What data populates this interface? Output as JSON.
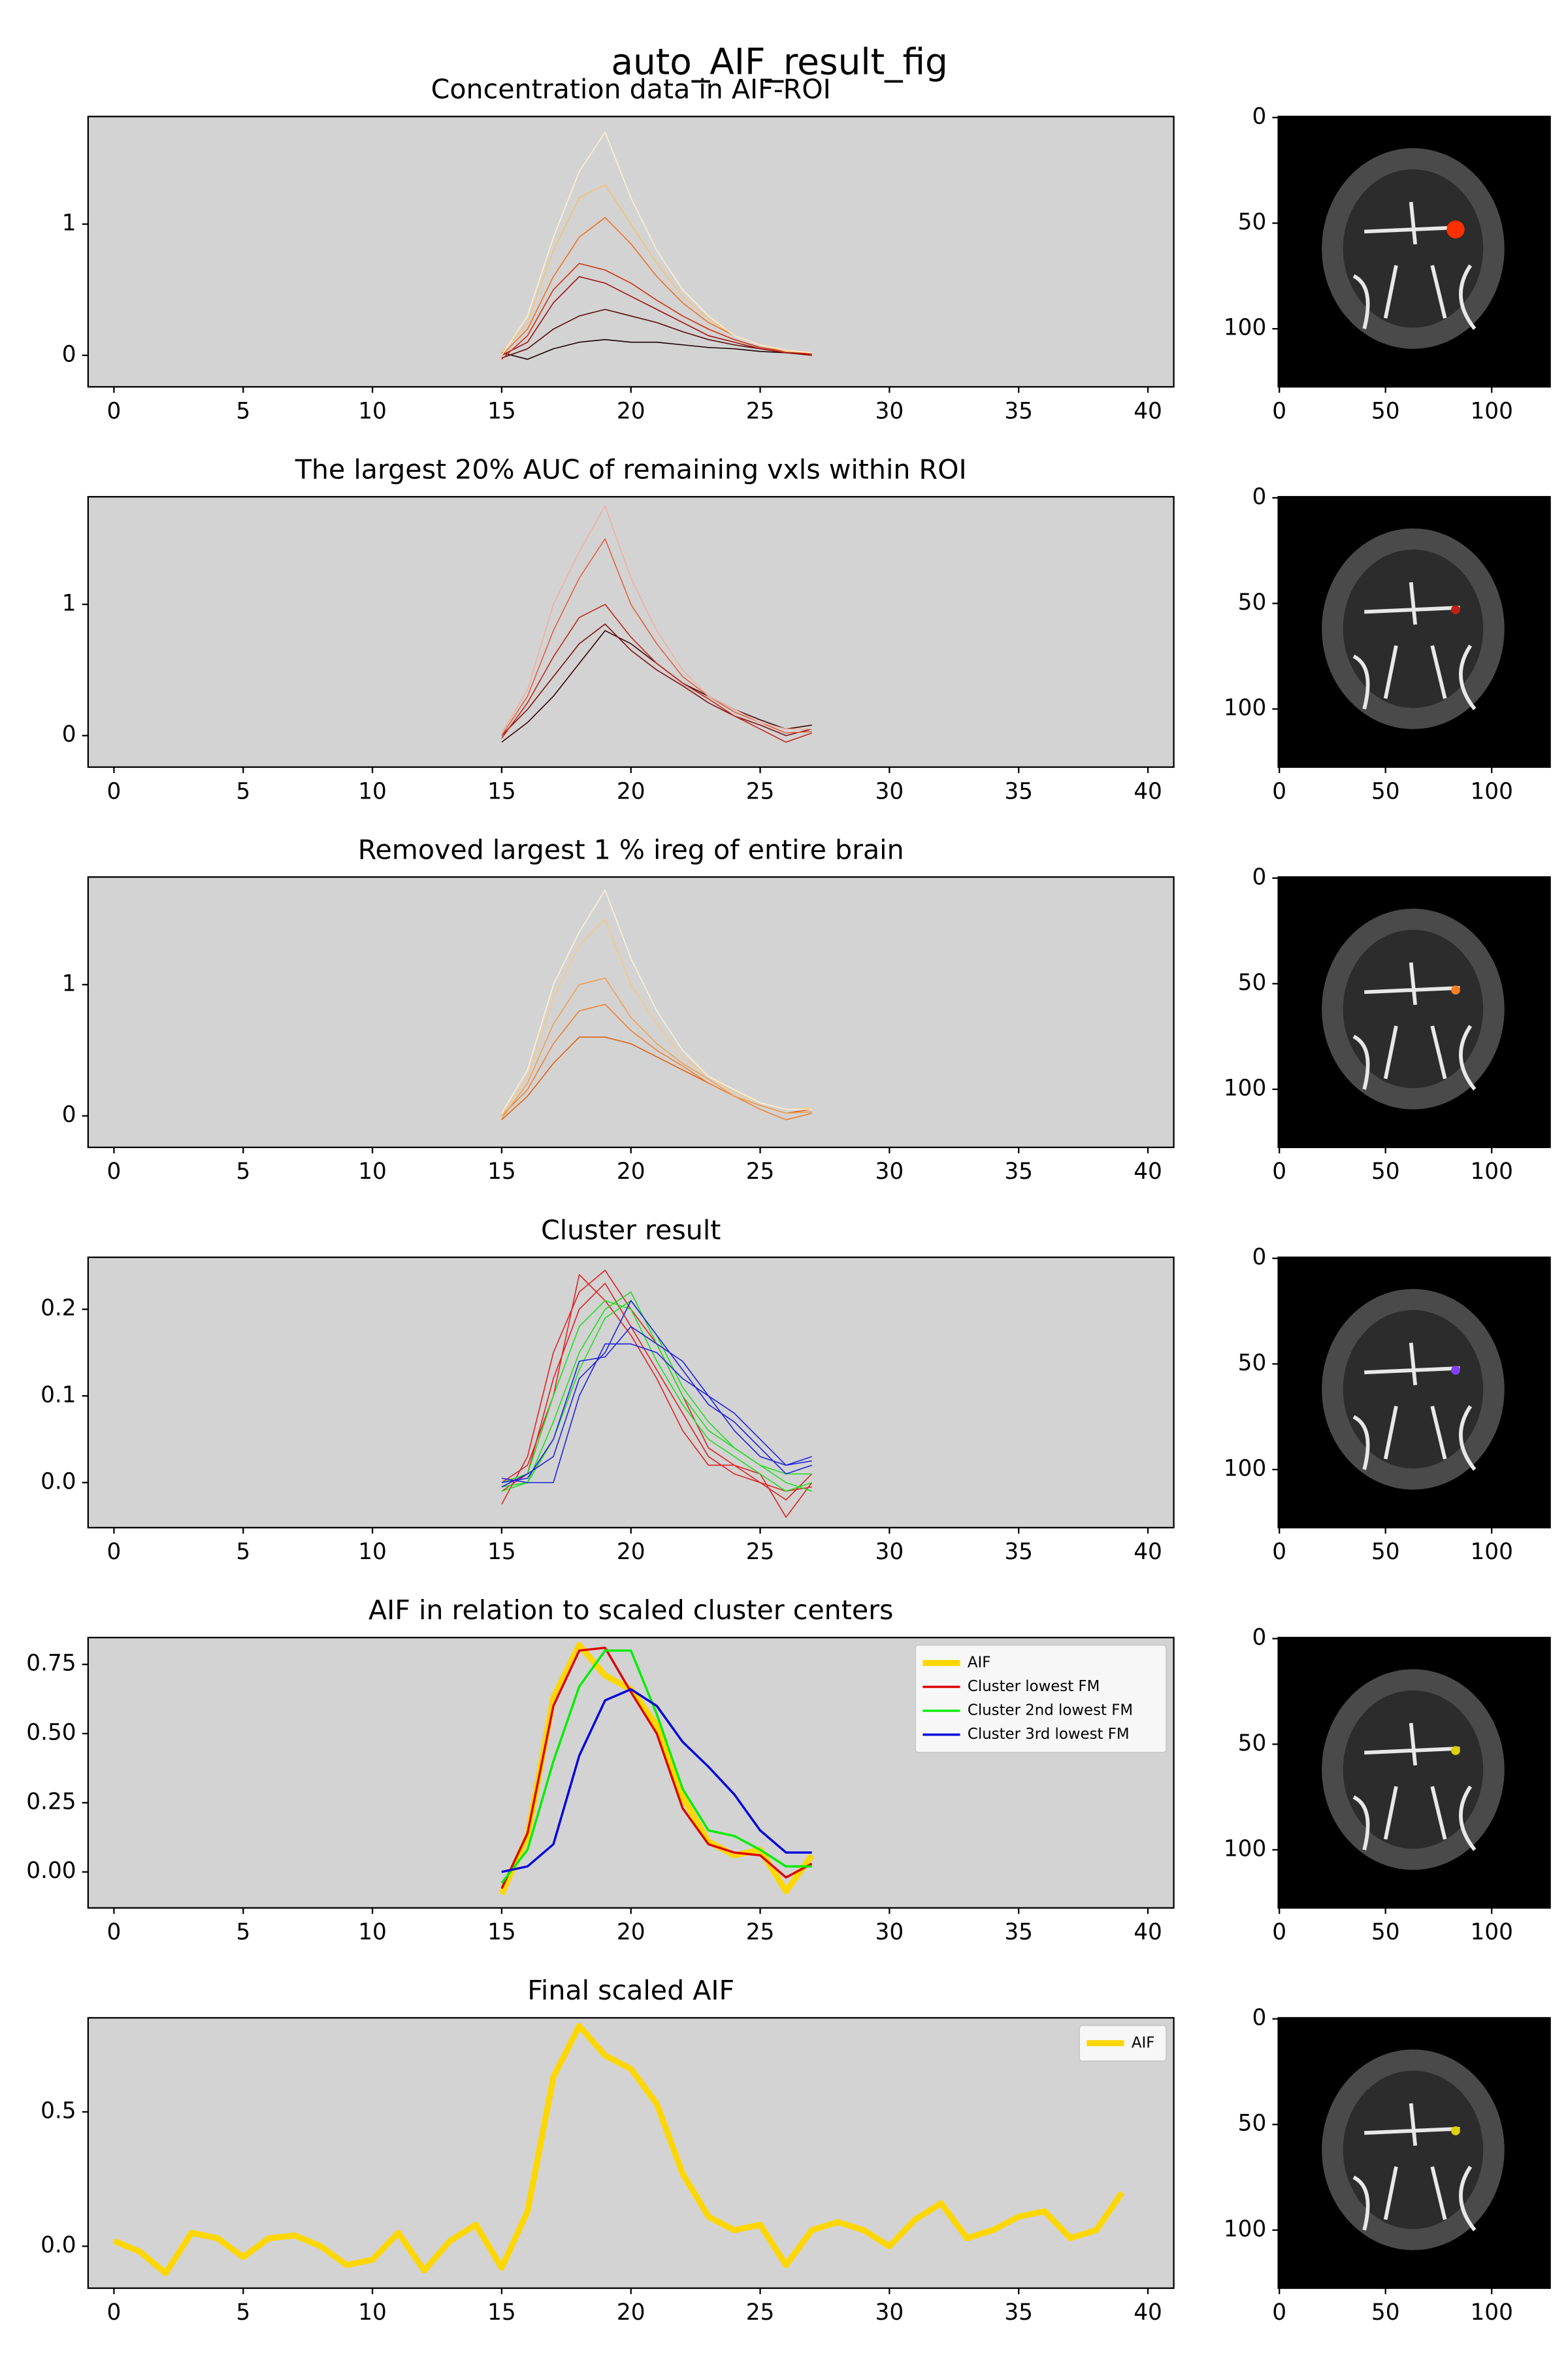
{
  "figure_title": "auto_AIF_result_fig",
  "chart_data": [
    {
      "type": "line",
      "title": "Concentration data in AIF-ROI",
      "x": [
        15,
        16,
        17,
        18,
        19,
        20,
        21,
        22,
        23,
        24,
        25,
        26,
        27
      ],
      "series": [
        {
          "color": "#1a0000",
          "linewidth": 0.7,
          "values": [
            0.02,
            -0.03,
            0.05,
            0.1,
            0.12,
            0.1,
            0.1,
            0.08,
            0.06,
            0.05,
            0.03,
            0.02,
            0.01
          ]
        },
        {
          "color": "#5a0a0a",
          "linewidth": 0.7,
          "values": [
            -0.02,
            0.05,
            0.2,
            0.3,
            0.35,
            0.3,
            0.25,
            0.18,
            0.12,
            0.08,
            0.05,
            0.02,
            0.0
          ]
        },
        {
          "color": "#a01010",
          "linewidth": 0.7,
          "values": [
            0.0,
            0.1,
            0.4,
            0.6,
            0.55,
            0.45,
            0.35,
            0.25,
            0.15,
            0.1,
            0.05,
            0.02,
            0.0
          ]
        },
        {
          "color": "#d03010",
          "linewidth": 0.7,
          "values": [
            -0.03,
            0.15,
            0.5,
            0.7,
            0.65,
            0.55,
            0.42,
            0.3,
            0.2,
            0.12,
            0.06,
            0.03,
            0.01
          ]
        },
        {
          "color": "#f07020",
          "linewidth": 0.7,
          "values": [
            0.0,
            0.2,
            0.6,
            0.9,
            1.05,
            0.85,
            0.6,
            0.4,
            0.25,
            0.15,
            0.08,
            0.04,
            0.02
          ]
        },
        {
          "color": "#f8c070",
          "linewidth": 0.7,
          "values": [
            0.02,
            0.25,
            0.8,
            1.2,
            1.3,
            1.0,
            0.7,
            0.45,
            0.28,
            0.15,
            0.08,
            0.03,
            0.02
          ]
        },
        {
          "color": "#fff0d0",
          "linewidth": 0.7,
          "values": [
            0.0,
            0.3,
            0.9,
            1.4,
            1.7,
            1.2,
            0.8,
            0.5,
            0.3,
            0.15,
            0.08,
            0.04,
            0.02
          ]
        }
      ],
      "xlim": [
        -1,
        41
      ],
      "ylim": [
        -0.24,
        1.82
      ],
      "xticks": [
        0,
        5,
        10,
        15,
        20,
        25,
        30,
        35,
        40
      ],
      "yticks": [
        0,
        1
      ]
    },
    {
      "type": "image",
      "xlim": [
        -0.5,
        127.5
      ],
      "ylim": [
        127.5,
        -0.5
      ],
      "xticks": [
        0,
        50,
        100
      ],
      "yticks": [
        0,
        50,
        100
      ]
    },
    {
      "type": "line",
      "title": "The largest 20% AUC of remaining vxls within ROI",
      "x": [
        15,
        16,
        17,
        18,
        19,
        20,
        21,
        22,
        23,
        24,
        25,
        26,
        27
      ],
      "series": [
        {
          "color": "#3a0505",
          "linewidth": 0.7,
          "values": [
            -0.05,
            0.1,
            0.3,
            0.55,
            0.8,
            0.7,
            0.55,
            0.4,
            0.3,
            0.2,
            0.12,
            0.05,
            0.08
          ]
        },
        {
          "color": "#801010",
          "linewidth": 0.7,
          "values": [
            0.0,
            0.2,
            0.45,
            0.7,
            0.85,
            0.65,
            0.5,
            0.38,
            0.25,
            0.15,
            0.08,
            0.0,
            0.05
          ]
        },
        {
          "color": "#c02818",
          "linewidth": 0.7,
          "values": [
            -0.02,
            0.25,
            0.6,
            0.9,
            1.0,
            0.75,
            0.55,
            0.4,
            0.28,
            0.15,
            0.05,
            -0.05,
            0.02
          ]
        },
        {
          "color": "#e06040",
          "linewidth": 0.7,
          "values": [
            0.0,
            0.3,
            0.8,
            1.2,
            1.5,
            1.0,
            0.7,
            0.45,
            0.3,
            0.18,
            0.1,
            0.02,
            0.03
          ]
        },
        {
          "color": "#f0b0a0",
          "linewidth": 0.7,
          "values": [
            0.02,
            0.35,
            1.0,
            1.4,
            1.75,
            1.2,
            0.8,
            0.5,
            0.3,
            0.2,
            0.1,
            0.05,
            0.05
          ]
        }
      ],
      "xlim": [
        -1,
        41
      ],
      "ylim": [
        -0.24,
        1.82
      ],
      "xticks": [
        0,
        5,
        10,
        15,
        20,
        25,
        30,
        35,
        40
      ],
      "yticks": [
        0,
        1
      ]
    },
    {
      "type": "image",
      "xlim": [
        -0.5,
        127.5
      ],
      "ylim": [
        127.5,
        -0.5
      ],
      "xticks": [
        0,
        50,
        100
      ],
      "yticks": [
        0,
        50,
        100
      ]
    },
    {
      "type": "line",
      "title": "Removed largest 1 % ireg of entire brain",
      "x": [
        15,
        16,
        17,
        18,
        19,
        20,
        21,
        22,
        23,
        24,
        25,
        26,
        27
      ],
      "series": [
        {
          "color": "#e06010",
          "linewidth": 0.7,
          "values": [
            -0.03,
            0.15,
            0.4,
            0.6,
            0.6,
            0.55,
            0.45,
            0.35,
            0.25,
            0.15,
            0.08,
            0.02,
            0.05
          ]
        },
        {
          "color": "#f08030",
          "linewidth": 0.7,
          "values": [
            0.0,
            0.2,
            0.55,
            0.8,
            0.85,
            0.65,
            0.5,
            0.38,
            0.25,
            0.15,
            0.05,
            -0.03,
            0.02
          ]
        },
        {
          "color": "#f0a050",
          "linewidth": 0.7,
          "values": [
            -0.02,
            0.25,
            0.7,
            1.0,
            1.05,
            0.75,
            0.55,
            0.4,
            0.28,
            0.15,
            0.08,
            0.02,
            0.03
          ]
        },
        {
          "color": "#f8c880",
          "linewidth": 0.7,
          "values": [
            0.0,
            0.3,
            0.9,
            1.3,
            1.5,
            1.0,
            0.7,
            0.45,
            0.3,
            0.18,
            0.1,
            0.05,
            0.06
          ]
        },
        {
          "color": "#fff0d8",
          "linewidth": 0.7,
          "values": [
            0.02,
            0.35,
            1.0,
            1.4,
            1.72,
            1.2,
            0.8,
            0.5,
            0.3,
            0.2,
            0.1,
            0.05,
            0.05
          ]
        }
      ],
      "xlim": [
        -1,
        41
      ],
      "ylim": [
        -0.24,
        1.82
      ],
      "xticks": [
        0,
        5,
        10,
        15,
        20,
        25,
        30,
        35,
        40
      ],
      "yticks": [
        0,
        1
      ]
    },
    {
      "type": "image",
      "xlim": [
        -0.5,
        127.5
      ],
      "ylim": [
        127.5,
        -0.5
      ],
      "xticks": [
        0,
        50,
        100
      ],
      "yticks": [
        0,
        50,
        100
      ]
    },
    {
      "type": "line",
      "title": "Cluster result",
      "x": [
        15,
        16,
        17,
        18,
        19,
        20,
        21,
        22,
        23,
        24,
        25,
        26,
        27
      ],
      "series": [
        {
          "color": "#dd2222",
          "linewidth": 0.7,
          "values": [
            -0.025,
            0.03,
            0.15,
            0.22,
            0.245,
            0.2,
            0.16,
            0.1,
            0.04,
            0.02,
            0.01,
            -0.04,
            0.0
          ]
        },
        {
          "color": "#dd2222",
          "linewidth": 0.7,
          "values": [
            -0.01,
            0.01,
            0.12,
            0.2,
            0.23,
            0.18,
            0.13,
            0.08,
            0.03,
            0.01,
            0.0,
            -0.02,
            0.01
          ]
        },
        {
          "color": "#dd2222",
          "linewidth": 0.7,
          "values": [
            0.0,
            0.02,
            0.1,
            0.24,
            0.21,
            0.17,
            0.12,
            0.06,
            0.02,
            0.02,
            0.0,
            -0.01,
            -0.005
          ]
        },
        {
          "color": "#22dd22",
          "linewidth": 0.7,
          "values": [
            -0.01,
            0.0,
            0.07,
            0.15,
            0.2,
            0.22,
            0.16,
            0.1,
            0.06,
            0.04,
            0.02,
            0.0,
            -0.01
          ]
        },
        {
          "color": "#22dd22",
          "linewidth": 0.7,
          "values": [
            0.0,
            0.01,
            0.1,
            0.18,
            0.21,
            0.2,
            0.14,
            0.09,
            0.05,
            0.03,
            0.01,
            -0.01,
            0.0
          ]
        },
        {
          "color": "#22dd22",
          "linewidth": 0.7,
          "values": [
            -0.005,
            0.0,
            0.05,
            0.13,
            0.19,
            0.21,
            0.17,
            0.11,
            0.07,
            0.04,
            0.02,
            0.01,
            0.01
          ]
        },
        {
          "color": "#2222dd",
          "linewidth": 0.7,
          "values": [
            0.005,
            0.0,
            0.0,
            0.1,
            0.16,
            0.16,
            0.15,
            0.12,
            0.1,
            0.08,
            0.05,
            0.02,
            0.025
          ]
        },
        {
          "color": "#2222dd",
          "linewidth": 0.7,
          "values": [
            -0.005,
            0.01,
            0.03,
            0.12,
            0.15,
            0.21,
            0.17,
            0.13,
            0.09,
            0.07,
            0.04,
            0.01,
            0.02
          ]
        },
        {
          "color": "#2222dd",
          "linewidth": 0.7,
          "values": [
            0.0,
            0.005,
            0.05,
            0.14,
            0.145,
            0.18,
            0.16,
            0.14,
            0.1,
            0.06,
            0.03,
            0.02,
            0.03
          ]
        }
      ],
      "xlim": [
        -1,
        41
      ],
      "ylim": [
        -0.052,
        0.26
      ],
      "xticks": [
        0,
        5,
        10,
        15,
        20,
        25,
        30,
        35,
        40
      ],
      "yticks": [
        {
          "value": 0,
          "label": "0.0"
        },
        {
          "value": 0.1,
          "label": "0.1"
        },
        {
          "value": 0.2,
          "label": "0.2"
        }
      ]
    },
    {
      "type": "image",
      "xlim": [
        -0.5,
        127.5
      ],
      "ylim": [
        127.5,
        -0.5
      ],
      "xticks": [
        0,
        50,
        100
      ],
      "yticks": [
        0,
        50,
        100
      ]
    },
    {
      "type": "line",
      "title": "AIF in relation to scaled cluster centers",
      "x": [
        15,
        16,
        17,
        18,
        19,
        20,
        21,
        22,
        23,
        24,
        25,
        26,
        27
      ],
      "series": [
        {
          "name": "AIF",
          "color": "#ffd700",
          "linewidth": 4,
          "values": [
            -0.08,
            0.13,
            0.63,
            0.82,
            0.71,
            0.66,
            0.53,
            0.27,
            0.11,
            0.06,
            0.08,
            -0.07,
            0.06
          ]
        },
        {
          "name": "Cluster lowest FM",
          "color": "#dd0000",
          "linewidth": 1.5,
          "values": [
            -0.06,
            0.14,
            0.6,
            0.8,
            0.81,
            0.65,
            0.5,
            0.23,
            0.1,
            0.07,
            0.06,
            -0.02,
            0.03
          ]
        },
        {
          "name": "Cluster 2nd lowest FM",
          "color": "#00ee00",
          "linewidth": 1.5,
          "values": [
            -0.04,
            0.08,
            0.4,
            0.67,
            0.8,
            0.8,
            0.57,
            0.3,
            0.15,
            0.13,
            0.08,
            0.02,
            0.02
          ]
        },
        {
          "name": "Cluster 3rd lowest FM",
          "color": "#0000dd",
          "linewidth": 1.5,
          "values": [
            0.0,
            0.02,
            0.1,
            0.42,
            0.62,
            0.66,
            0.6,
            0.47,
            0.38,
            0.28,
            0.15,
            0.07,
            0.07
          ]
        }
      ],
      "xlim": [
        -1,
        41
      ],
      "ylim": [
        -0.13,
        0.847
      ],
      "xticks": [
        0,
        5,
        10,
        15,
        20,
        25,
        30,
        35,
        40
      ],
      "yticks": [
        {
          "value": 0,
          "label": "0.00"
        },
        {
          "value": 0.25,
          "label": "0.25"
        },
        {
          "value": 0.5,
          "label": "0.50"
        },
        {
          "value": 0.75,
          "label": "0.75"
        }
      ],
      "legend": "upper right"
    },
    {
      "type": "image",
      "xlim": [
        -0.5,
        127.5
      ],
      "ylim": [
        127.5,
        -0.5
      ],
      "xticks": [
        0,
        50,
        100
      ],
      "yticks": [
        0,
        50,
        100
      ]
    },
    {
      "type": "line",
      "title": "Final scaled AIF",
      "x": [
        0,
        1,
        2,
        3,
        4,
        5,
        6,
        7,
        8,
        9,
        10,
        11,
        12,
        13,
        14,
        15,
        16,
        17,
        18,
        19,
        20,
        21,
        22,
        23,
        24,
        25,
        26,
        27,
        28,
        29,
        30,
        31,
        32,
        33,
        34,
        35,
        36,
        37,
        38,
        39
      ],
      "series": [
        {
          "name": "AIF",
          "color": "#ffd700",
          "linewidth": 4,
          "values": [
            0.02,
            -0.02,
            -0.1,
            0.05,
            0.03,
            -0.04,
            0.03,
            0.04,
            0.0,
            -0.07,
            -0.05,
            0.05,
            -0.09,
            0.02,
            0.08,
            -0.08,
            0.13,
            0.63,
            0.82,
            0.71,
            0.66,
            0.53,
            0.27,
            0.11,
            0.06,
            0.08,
            -0.07,
            0.06,
            0.09,
            0.06,
            0.0,
            0.1,
            0.16,
            0.03,
            0.06,
            0.11,
            0.13,
            0.03,
            0.06,
            0.2
          ]
        }
      ],
      "xlim": [
        -1,
        41
      ],
      "ylim": [
        -0.156,
        0.85
      ],
      "xticks": [
        0,
        5,
        10,
        15,
        20,
        25,
        30,
        35,
        40
      ],
      "yticks": [
        {
          "value": 0,
          "label": "0.0"
        },
        {
          "value": 0.5,
          "label": "0.5"
        }
      ],
      "legend": "upper right"
    },
    {
      "type": "image",
      "xlim": [
        -0.5,
        127.5
      ],
      "ylim": [
        127.5,
        -0.5
      ],
      "xticks": [
        0,
        50,
        100
      ],
      "yticks": [
        0,
        50,
        100
      ]
    }
  ]
}
